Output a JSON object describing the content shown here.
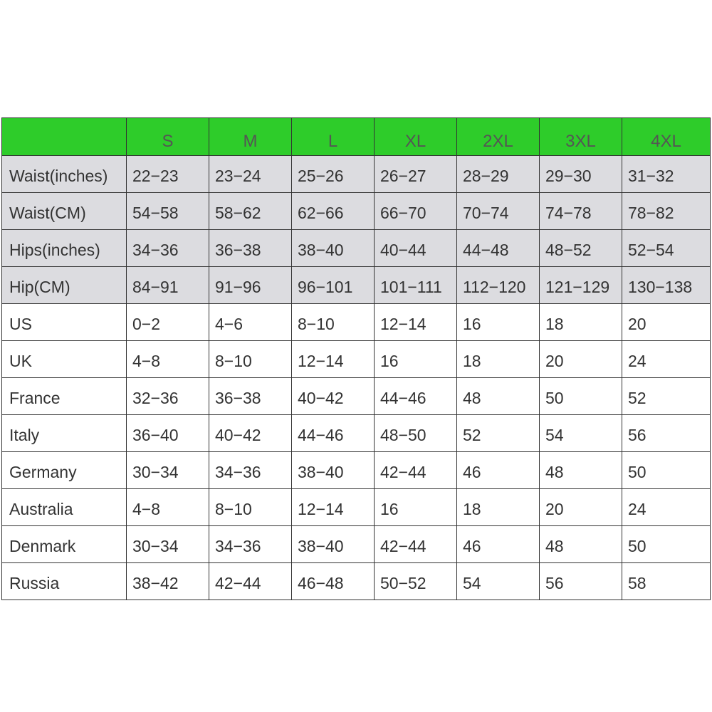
{
  "table": {
    "header_color": "#2ecc2a",
    "shaded_row_color": "#dcdce0",
    "columns": [
      "",
      "S",
      "M",
      "L",
      "XL",
      "2XL",
      "3XL",
      "4XL"
    ],
    "rows": [
      {
        "label": "Waist(inches)",
        "shaded": true,
        "values": [
          "22-23",
          "23-24",
          "25-26",
          "26-27",
          "28-29",
          "29-30",
          "31-32"
        ]
      },
      {
        "label": "Waist(CM)",
        "shaded": true,
        "values": [
          "54-58",
          "58-62",
          "62-66",
          "66-70",
          "70-74",
          "74-78",
          "78-82"
        ]
      },
      {
        "label": "Hips(inches)",
        "shaded": true,
        "values": [
          "34-36",
          "36-38",
          "38-40",
          "40-44",
          "44-48",
          "48-52",
          "52-54"
        ]
      },
      {
        "label": "Hip(CM)",
        "shaded": true,
        "values": [
          "84-91",
          "91-96",
          "96-101",
          "101-111",
          "112-120",
          "121-129",
          "130-138"
        ]
      },
      {
        "label": "US",
        "shaded": false,
        "values": [
          "0-2",
          "4-6",
          "8-10",
          "12-14",
          "16",
          "18",
          "20"
        ]
      },
      {
        "label": "UK",
        "shaded": false,
        "values": [
          "4-8",
          "8-10",
          "12-14",
          "16",
          "18",
          "20",
          "24"
        ]
      },
      {
        "label": "France",
        "shaded": false,
        "values": [
          "32-36",
          "36-38",
          "40-42",
          "44-46",
          "48",
          "50",
          "52"
        ]
      },
      {
        "label": "Italy",
        "shaded": false,
        "values": [
          "36-40",
          "40-42",
          "44-46",
          "48-50",
          "52",
          "54",
          "56"
        ]
      },
      {
        "label": "Germany",
        "shaded": false,
        "values": [
          "30-34",
          "34-36",
          "38-40",
          "42-44",
          "46",
          "48",
          "50"
        ]
      },
      {
        "label": "Australia",
        "shaded": false,
        "values": [
          "4-8",
          "8-10",
          "12-14",
          "16",
          "18",
          "20",
          "24"
        ]
      },
      {
        "label": "Denmark",
        "shaded": false,
        "values": [
          "30-34",
          "34-36",
          "38-40",
          "42-44",
          "46",
          "48",
          "50"
        ]
      },
      {
        "label": "Russia",
        "shaded": false,
        "values": [
          "38-42",
          "42-44",
          "46-48",
          "50-52",
          "54",
          "56",
          "58"
        ]
      }
    ]
  }
}
